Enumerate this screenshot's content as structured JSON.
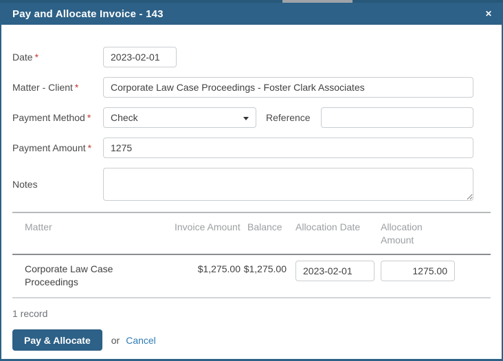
{
  "backdrop": {
    "page_edge_color": "#275879",
    "scrollbar_color": "#9fa4a8"
  },
  "dialog": {
    "title": "Pay and Allocate Invoice - 143",
    "close_glyph": "✕",
    "header_color": "#2d6187"
  },
  "form": {
    "required_marker": "*",
    "fields": {
      "date": {
        "label": "Date",
        "required": true,
        "value": "2023-02-01"
      },
      "matter_client": {
        "label": "Matter - Client",
        "required": true,
        "value": "Corporate Law Case Proceedings - Foster Clark Associates"
      },
      "payment_method": {
        "label": "Payment Method",
        "required": true,
        "value": "Check"
      },
      "reference": {
        "label": "Reference",
        "required": false,
        "value": ""
      },
      "payment_amount": {
        "label": "Payment Amount",
        "required": true,
        "value": "1275"
      },
      "notes": {
        "label": "Notes",
        "required": false,
        "value": ""
      }
    }
  },
  "allocation_table": {
    "columns": [
      "Matter",
      "Invoice Amount",
      "Balance",
      "Allocation Date",
      "Allocation Amount"
    ],
    "rows": [
      {
        "matter": "Corporate Law Case Proceedings",
        "invoice_amount": "$1,275.00",
        "balance": "$1,275.00",
        "allocation_date": "2023-02-01",
        "allocation_amount": "1275.00"
      }
    ],
    "record_count": "1 record"
  },
  "footer": {
    "pay_button_label": "Pay & Allocate",
    "or_text": "or",
    "cancel_label": "Cancel"
  },
  "colors": {
    "accent_blue": "#2d6187",
    "link_blue": "#2e7bb4",
    "required_red": "#c0392b"
  }
}
